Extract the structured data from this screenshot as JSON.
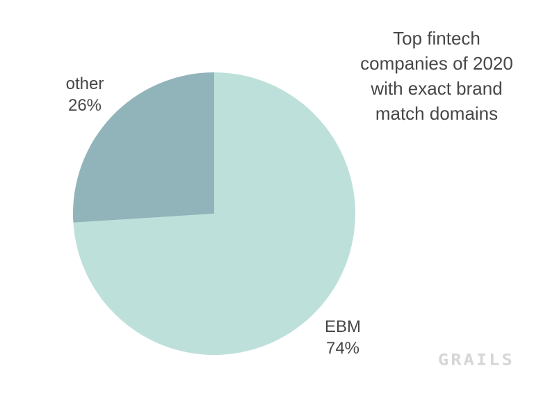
{
  "chart_data": {
    "type": "pie",
    "title": "Top fintech companies of 2020 with exact brand match domains",
    "slices": [
      {
        "label": "EBM",
        "value": 74,
        "percent_display": "74%",
        "color": "#bee0db"
      },
      {
        "label": "other",
        "value": 26,
        "percent_display": "26%",
        "color": "#90b4b9"
      }
    ],
    "start_angle_deg": 0,
    "direction": "clockwise",
    "legend": "none",
    "labels_position": "outside",
    "background": "#ffffff",
    "text_color": "#474747"
  },
  "title_display": "Top fintech\ncompanies of 2020\nwith exact brand\nmatch domains",
  "labels": {
    "other_display": "other\n26%",
    "ebm_display": "EBM\n74%"
  },
  "branding": {
    "logo_text": "GRAILS",
    "color": "#d6d6d6"
  }
}
